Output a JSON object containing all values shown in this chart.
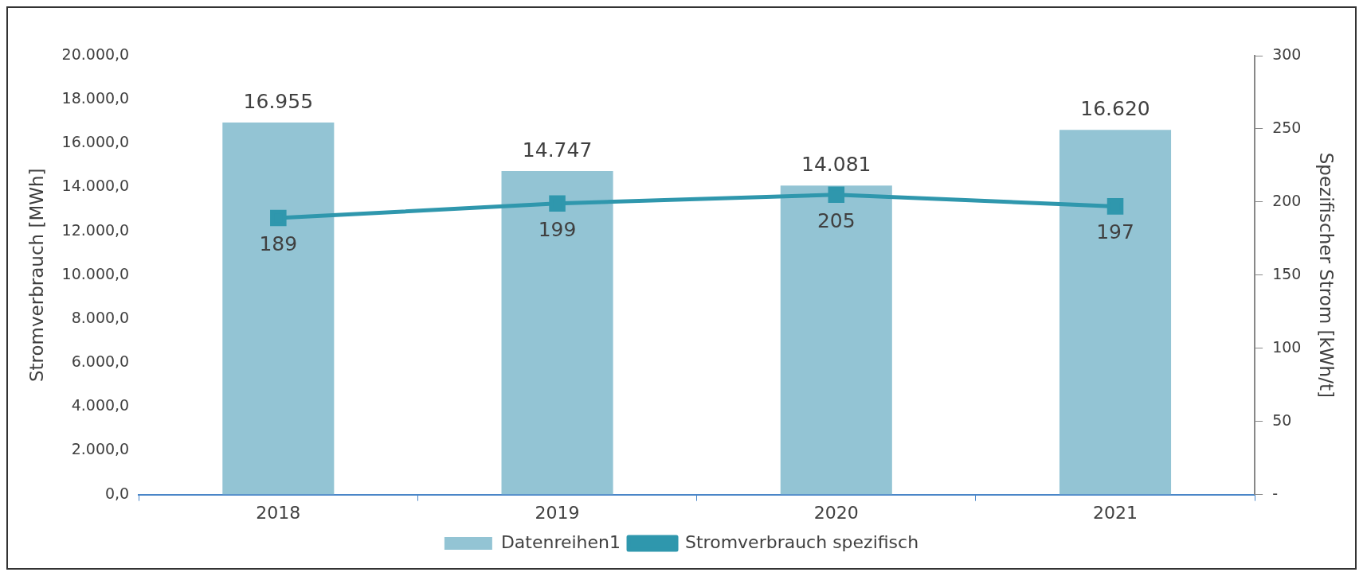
{
  "chart_data": {
    "type": "bar",
    "categories": [
      "2018",
      "2019",
      "2020",
      "2021"
    ],
    "ylabel": "Stromverbrauch [MWh]",
    "y2label": "Spezifischer Strom [kWh/t]",
    "series": [
      {
        "name": "Datenreihen1",
        "color": "#93c4d4",
        "values": [
          16955,
          14747,
          14081,
          16620
        ],
        "value_labels": [
          "16.955",
          "14.747",
          "14.081",
          "16.620"
        ]
      },
      {
        "name": "Stromverbrauch spezifisch",
        "type": "line",
        "axis": "y2",
        "color": "#2f97ad",
        "values": [
          189,
          199,
          205,
          197
        ],
        "value_labels": [
          "189",
          "199",
          "205",
          "197"
        ]
      }
    ],
    "ylim": [
      0,
      20000
    ],
    "yticks": [
      {
        "value": 0,
        "label": "0,0"
      },
      {
        "value": 2000,
        "label": "2.000,0"
      },
      {
        "value": 4000,
        "label": "4.000,0"
      },
      {
        "value": 6000,
        "label": "6.000,0"
      },
      {
        "value": 8000,
        "label": "8.000,0"
      },
      {
        "value": 10000,
        "label": "10.000,0"
      },
      {
        "value": 12000,
        "label": "12.000,0"
      },
      {
        "value": 14000,
        "label": "14.000,0"
      },
      {
        "value": 16000,
        "label": "16.000,0"
      },
      {
        "value": 18000,
        "label": "18.000,0"
      },
      {
        "value": 20000,
        "label": "20.000,0"
      }
    ],
    "y2lim": [
      0,
      300
    ],
    "y2ticks": [
      {
        "value": 0,
        "label": "-"
      },
      50,
      100,
      150,
      200,
      250,
      300
    ],
    "grid": false,
    "legend": "bottom",
    "marker": "square",
    "line_style": "solid"
  }
}
